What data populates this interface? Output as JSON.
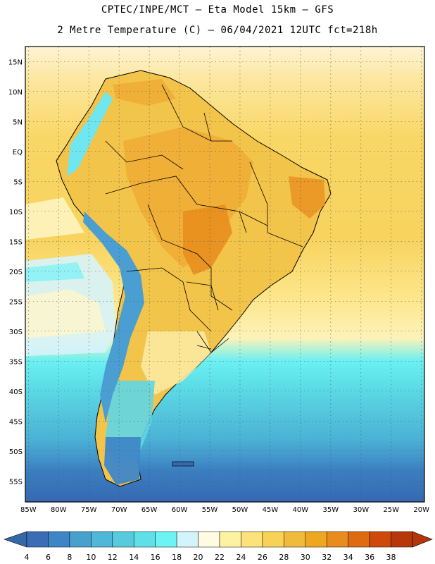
{
  "header": {
    "line1": "CPTEC/INPE/MCT –  Eta Model 15km – GFS",
    "line2": "2 Metre Temperature (C) – 06/04/2021 12UTC fct=218h"
  },
  "map": {
    "lat_labels": [
      "15N",
      "10N",
      "5N",
      "EQ",
      "5S",
      "10S",
      "15S",
      "20S",
      "25S",
      "30S",
      "35S",
      "40S",
      "45S",
      "50S",
      "55S"
    ],
    "lat_values": [
      15,
      10,
      5,
      0,
      -5,
      -10,
      -15,
      -20,
      -25,
      -30,
      -35,
      -40,
      -45,
      -50,
      -55
    ],
    "lon_labels": [
      "85W",
      "80W",
      "75W",
      "70W",
      "65W",
      "60W",
      "55W",
      "50W",
      "45W",
      "40W",
      "35W",
      "30W",
      "25W",
      "20W"
    ],
    "lon_values": [
      -85,
      -80,
      -75,
      -70,
      -65,
      -60,
      -55,
      -50,
      -45,
      -40,
      -35,
      -30,
      -25,
      -20
    ],
    "extent": {
      "lon_min": -85.5,
      "lon_max": -19.5,
      "lat_min": -58.5,
      "lat_max": 17.5
    }
  },
  "colorbar": {
    "labels": [
      "4",
      "6",
      "8",
      "10",
      "12",
      "14",
      "16",
      "18",
      "20",
      "22",
      "24",
      "26",
      "28",
      "30",
      "32",
      "34",
      "36",
      "38"
    ],
    "colors": [
      "#3a6db5",
      "#3d85c6",
      "#48a0cf",
      "#4fb7d8",
      "#55cbdd",
      "#5fe0e8",
      "#6cf4f4",
      "#d4f4fb",
      "#fffbe2",
      "#fdf2a2",
      "#fce27a",
      "#f8d257",
      "#f0bb3a",
      "#eda81f",
      "#e88c1e",
      "#e06a10",
      "#cf4a0a",
      "#b8370a"
    ],
    "low_color": "#3468a8",
    "high_color": "#b3360a"
  }
}
